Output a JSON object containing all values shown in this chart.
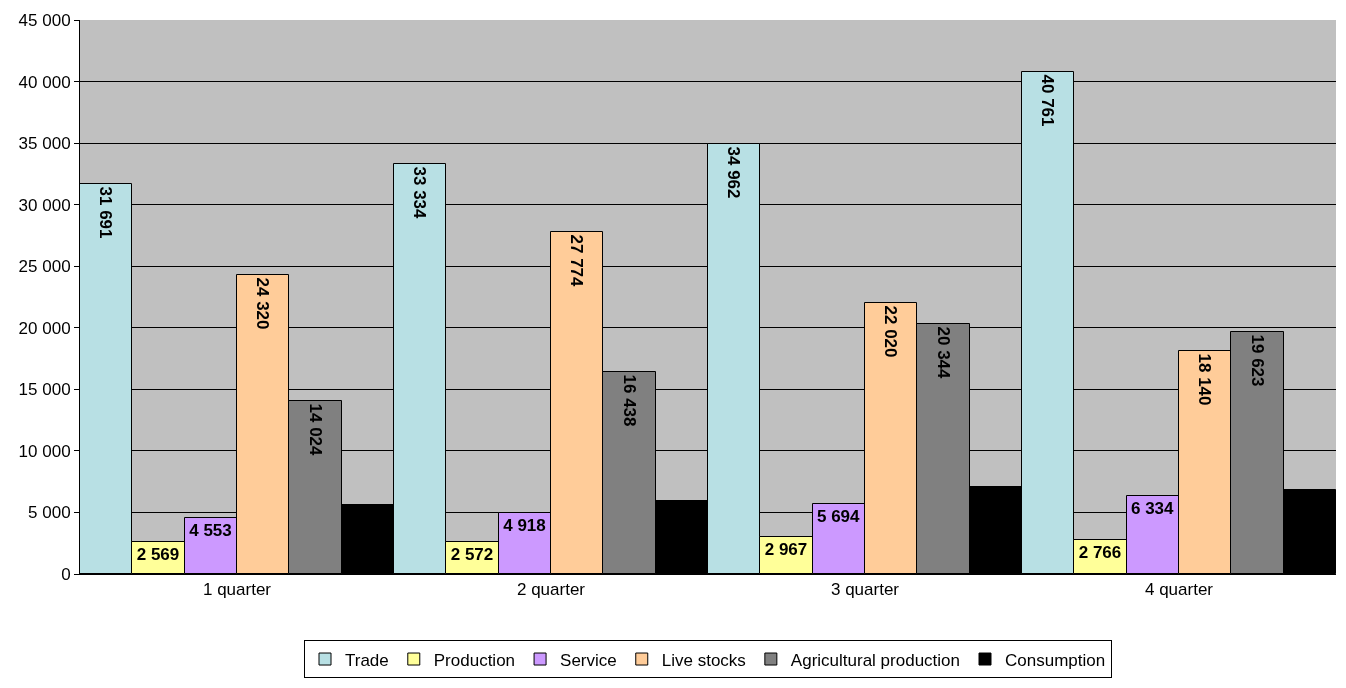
{
  "chart_data": {
    "type": "bar",
    "categories": [
      "1 quarter",
      "2 quarter",
      "3 quarter",
      "4 quarter"
    ],
    "series": [
      {
        "name": "Trade",
        "color": "#b8e0e4",
        "values": [
          31691,
          33334,
          34962,
          40761
        ],
        "value_labels": [
          "31 691",
          "33 334",
          "34 962",
          "40 761"
        ]
      },
      {
        "name": "Production",
        "color": "#ffff99",
        "values": [
          2569,
          2572,
          2967,
          2766
        ],
        "value_labels": [
          "2 569",
          "2 572",
          "2 967",
          "2 766"
        ]
      },
      {
        "name": "Service",
        "color": "#cc99ff",
        "values": [
          4553,
          4918,
          5694,
          6334
        ],
        "value_labels": [
          "4 553",
          "4 918",
          "5 694",
          "6 334"
        ]
      },
      {
        "name": "Live stocks",
        "color": "#ffcc99",
        "values": [
          24320,
          27774,
          22020,
          18140
        ],
        "value_labels": [
          "24 320",
          "27 774",
          "22 020",
          "18 140"
        ]
      },
      {
        "name": "Agricultural production",
        "color": "#808080",
        "values": [
          14024,
          16438,
          20344,
          19623
        ],
        "value_labels": [
          "14 024",
          "16 438",
          "20 344",
          "19 623"
        ]
      },
      {
        "name": "Consumption",
        "color": "#000000",
        "values": [
          5600,
          5900,
          7100,
          6800
        ]
      }
    ],
    "ylim": [
      0,
      45000
    ],
    "yticks": [
      {
        "value": 0,
        "label": "0"
      },
      {
        "value": 5000,
        "label": "5 000"
      },
      {
        "value": 10000,
        "label": "10 000"
      },
      {
        "value": 15000,
        "label": "15 000"
      },
      {
        "value": 20000,
        "label": "20 000"
      },
      {
        "value": 25000,
        "label": "25 000"
      },
      {
        "value": 30000,
        "label": "30 000"
      },
      {
        "value": 35000,
        "label": "35 000"
      },
      {
        "value": 40000,
        "label": "40 000"
      },
      {
        "value": 45000,
        "label": "45 000"
      }
    ],
    "grid": "y",
    "legend": "bottom"
  }
}
